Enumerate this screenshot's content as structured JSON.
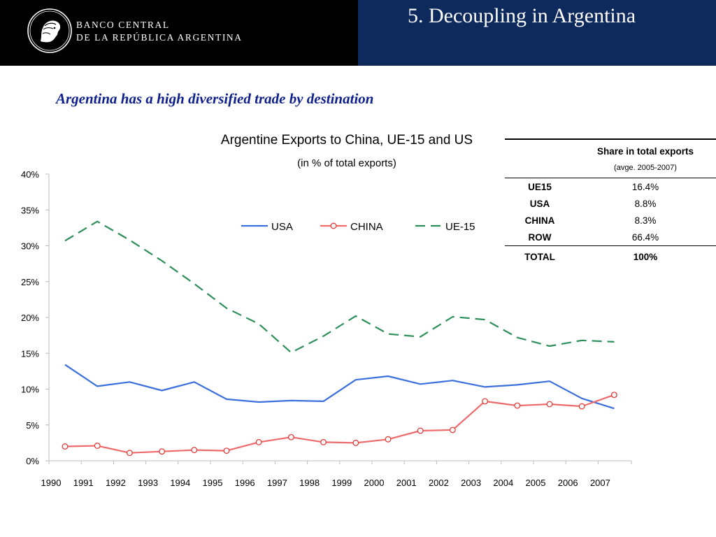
{
  "header": {
    "bank_name_line1": "BANCO CENTRAL",
    "bank_name_line2": "DE LA REPÚBLICA ARGENTINA",
    "slide_title": "5. Decoupling in Argentina",
    "logo_icon": "liberty-head-medallion-icon"
  },
  "subtitle": "Argentina has a high diversified trade by destination",
  "chart_data": {
    "type": "line",
    "title": "Argentine Exports to China, UE-15 and US",
    "subtitle": "(in % of total exports)",
    "xlabel": "",
    "ylabel": "",
    "ylim": [
      0,
      40
    ],
    "yticks": [
      "0%",
      "5%",
      "10%",
      "15%",
      "20%",
      "25%",
      "30%",
      "35%",
      "40%"
    ],
    "x": [
      "1990",
      "1991",
      "1992",
      "1993",
      "1994",
      "1995",
      "1996",
      "1997",
      "1998",
      "1999",
      "2000",
      "2001",
      "2002",
      "2003",
      "2004",
      "2005",
      "2006",
      "2007"
    ],
    "grid": false,
    "legend": "top-center",
    "series": [
      {
        "name": "USA",
        "color": "#3a6fdc",
        "style": "solid",
        "marker": "none",
        "values": [
          13.4,
          10.4,
          11.0,
          9.8,
          11.0,
          8.6,
          8.2,
          8.4,
          8.3,
          11.3,
          11.8,
          10.7,
          11.2,
          10.3,
          10.6,
          11.1,
          8.7,
          7.3
        ]
      },
      {
        "name": "CHINA",
        "color": "#ef6b6b",
        "style": "solid",
        "marker": "circle",
        "values": [
          2.0,
          2.1,
          1.1,
          1.3,
          1.5,
          1.4,
          2.6,
          3.3,
          2.6,
          2.5,
          3.0,
          4.2,
          4.3,
          8.3,
          7.7,
          7.9,
          7.6,
          9.2
        ]
      },
      {
        "name": "UE-15",
        "color": "#2f8f5a",
        "style": "dashed",
        "marker": "none",
        "values": [
          30.7,
          33.4,
          30.8,
          27.9,
          24.7,
          21.3,
          19.1,
          15.1,
          17.4,
          20.2,
          17.7,
          17.3,
          20.1,
          19.7,
          17.2,
          16.0,
          16.8,
          16.6
        ]
      }
    ]
  },
  "share_table": {
    "header": "Share in total exports",
    "subheader": "(avge. 2005-2007)",
    "rows": [
      {
        "label": "UE15",
        "value": "16.4%"
      },
      {
        "label": "USA",
        "value": "8.8%"
      },
      {
        "label": "CHINA",
        "value": "8.3%"
      },
      {
        "label": "ROW",
        "value": "66.4%"
      }
    ],
    "total": {
      "label": "TOTAL",
      "value": "100%"
    }
  }
}
